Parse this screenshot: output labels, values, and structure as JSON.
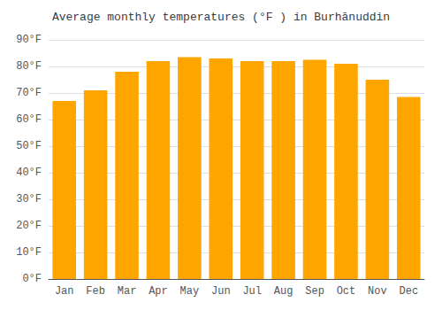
{
  "chart_data": {
    "type": "bar",
    "title": "Average monthly temperatures (°F ) in Burhānuddin",
    "categories": [
      "Jan",
      "Feb",
      "Mar",
      "Apr",
      "May",
      "Jun",
      "Jul",
      "Aug",
      "Sep",
      "Oct",
      "Nov",
      "Dec"
    ],
    "values": [
      67,
      71,
      78,
      82,
      83.5,
      83,
      82,
      82,
      82.5,
      81,
      75,
      68.5
    ],
    "color": "#FFA500",
    "ylim": [
      0,
      90
    ],
    "yticks": [
      {
        "value": 0,
        "label": "0°F"
      },
      {
        "value": 10,
        "label": "10°F"
      },
      {
        "value": 20,
        "label": "20°F"
      },
      {
        "value": 30,
        "label": "30°F"
      },
      {
        "value": 40,
        "label": "40°F"
      },
      {
        "value": 50,
        "label": "50°F"
      },
      {
        "value": 60,
        "label": "60°F"
      },
      {
        "value": 70,
        "label": "70°F"
      },
      {
        "value": 80,
        "label": "80°F"
      },
      {
        "value": 90,
        "label": "90°F"
      }
    ],
    "grid": true
  }
}
